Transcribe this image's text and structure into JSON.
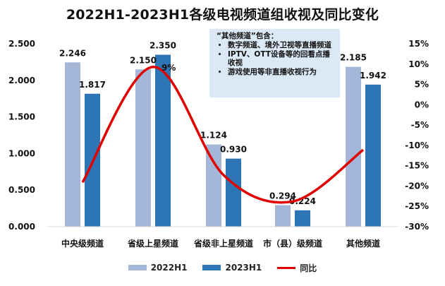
{
  "chart_data": {
    "type": "bar",
    "title": "2022H1-2023H1各级电视频道组收视及同比变化",
    "categories": [
      "中央级频道",
      "省级上星频道",
      "省级非上星频道",
      "市（县）级频道",
      "其他频道"
    ],
    "series": [
      {
        "name": "2022H1",
        "color": "#a5b7d8",
        "values": [
          2.246,
          2.15,
          1.124,
          0.294,
          2.185
        ],
        "labels": [
          "2.246",
          "2.150",
          "1.124",
          "0.294",
          "2.185"
        ]
      },
      {
        "name": "2023H1",
        "color": "#2e75b6",
        "values": [
          1.817,
          2.35,
          0.93,
          0.224,
          1.942
        ],
        "labels": [
          "1.817",
          "2.350",
          "0.930",
          "0.224",
          "1.942"
        ]
      }
    ],
    "line_series": {
      "name": "同比",
      "color": "#e00000",
      "values": [
        -19.1,
        9.3,
        -17.3,
        -23.8,
        -11.1
      ],
      "annotated_label": "9%"
    },
    "y_left": {
      "min": 0,
      "max": 2.5,
      "ticks": [
        "0.000",
        "0.500",
        "1.000",
        "1.500",
        "2.000",
        "2.500"
      ]
    },
    "y_right": {
      "min": -30,
      "max": 15,
      "ticks": [
        "-30%",
        "-25%",
        "-20%",
        "-15%",
        "-10%",
        "-5%",
        "0%",
        "5%",
        "10%",
        "15%"
      ]
    },
    "legend": [
      "2022H1",
      "2023H1",
      "同比"
    ],
    "note": {
      "heading": "“其他频道”包含：",
      "items": [
        "数字频道、境外卫视等直播频道",
        "IPTV、OTT设备等的回看点播收视",
        "游戏使用等非直播收视行为"
      ]
    }
  }
}
